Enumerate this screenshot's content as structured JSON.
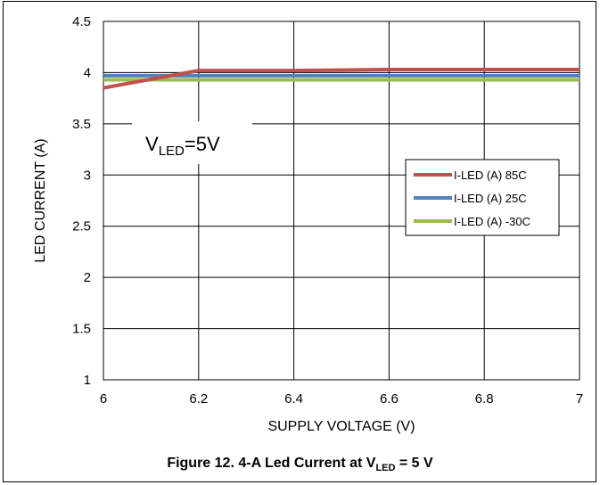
{
  "chart_data": {
    "type": "line",
    "xlabel": "SUPPLY VOLTAGE (V)",
    "ylabel": "LED CURRENT (A)",
    "xlim": [
      6,
      7
    ],
    "ylim": [
      1,
      4.5
    ],
    "xticks": [
      "6",
      "6.2",
      "6.4",
      "6.6",
      "6.8",
      "7"
    ],
    "yticks": [
      "1",
      "1.5",
      "2",
      "2.5",
      "3",
      "3.5",
      "4",
      "4.5"
    ],
    "grid": true,
    "legend_position": "right",
    "annotation": {
      "main": "V",
      "sub": "LED",
      "tail": "=5V"
    },
    "series": [
      {
        "name": "I-LED (A) 85C",
        "color": "#c0504d",
        "x": [
          6,
          6.2,
          6.4,
          6.6,
          6.8,
          7
        ],
        "y": [
          3.85,
          4.02,
          4.02,
          4.03,
          4.03,
          4.03
        ]
      },
      {
        "name": "I-LED (A) 25C",
        "color": "#4f81bd",
        "x": [
          6,
          6.2,
          6.4,
          6.6,
          6.8,
          7
        ],
        "y": [
          3.97,
          3.97,
          3.97,
          3.97,
          3.97,
          3.97
        ]
      },
      {
        "name": "I-LED (A) -30C",
        "color": "#9bbb59",
        "x": [
          6,
          6.2,
          6.4,
          6.6,
          6.8,
          7
        ],
        "y": [
          3.93,
          3.93,
          3.93,
          3.93,
          3.93,
          3.93
        ]
      }
    ]
  },
  "caption": {
    "prefix": "Figure 12. 4-A Led Current at V",
    "sub": "LED",
    "suffix": " = 5 V"
  }
}
